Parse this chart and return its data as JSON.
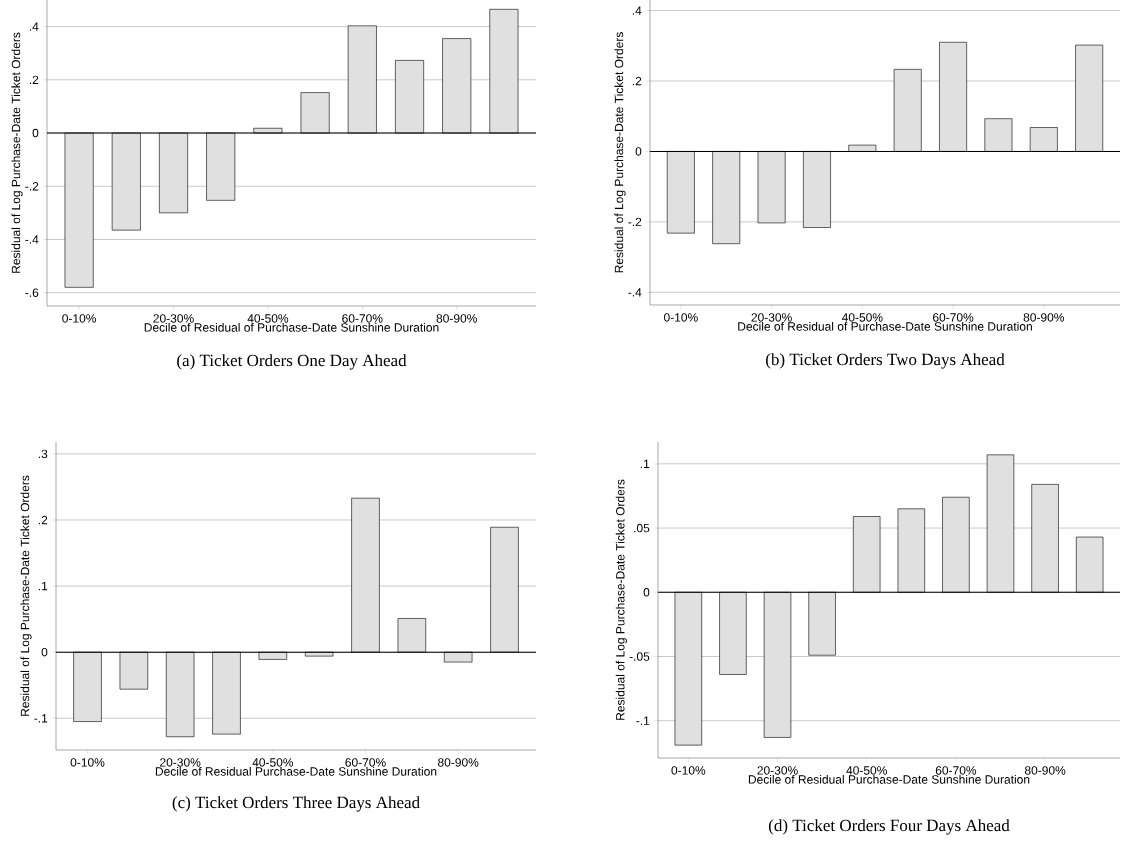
{
  "chart_data": [
    {
      "type": "bar",
      "title": "(a) Ticket Orders One Day Ahead",
      "xlabel": "Decile of Residual of Purchase-Date Sunshine Duration",
      "ylabel": "Residual of Log Purchase-Date Ticket Orders",
      "categories": [
        "0-10%",
        null,
        "20-30%",
        null,
        "40-50%",
        null,
        "60-70%",
        null,
        "80-90%",
        null
      ],
      "values": [
        -0.58,
        -0.365,
        -0.3,
        -0.253,
        0.018,
        0.152,
        0.403,
        0.273,
        0.355,
        0.465
      ],
      "color": "#e0e0e0",
      "ylim": [
        -0.65,
        0.5
      ],
      "yticks": [
        {
          "value": -0.6,
          "label": "-.6"
        },
        {
          "value": -0.4,
          "label": "-.4"
        },
        {
          "value": -0.2,
          "label": "-.2"
        },
        0,
        {
          "value": 0.2,
          "label": ".2"
        },
        {
          "value": 0.4,
          "label": ".4"
        }
      ],
      "grid": "y",
      "ref_lines": [
        {
          "axis": "y",
          "value": 0,
          "color": "#000000"
        }
      ]
    },
    {
      "type": "bar",
      "title": "(b) Ticket Orders Two Days Ahead",
      "xlabel": "Decile of Residual of Purchase-Date Sunshine Duration",
      "ylabel": "Residual of Log Purchase-Date Ticket Orders",
      "categories": [
        "0-10%",
        null,
        "20-30%",
        null,
        "40-50%",
        null,
        "60-70%",
        null,
        "80-90%",
        null
      ],
      "values": [
        -0.232,
        -0.262,
        -0.203,
        -0.216,
        0.018,
        0.233,
        0.31,
        0.093,
        0.068,
        0.302
      ],
      "color": "#e0e0e0",
      "ylim": [
        -0.436,
        0.43
      ],
      "yticks": [
        {
          "value": -0.4,
          "label": "-.4"
        },
        {
          "value": -0.2,
          "label": "-.2"
        },
        0,
        {
          "value": 0.2,
          "label": ".2"
        },
        {
          "value": 0.4,
          "label": ".4"
        }
      ],
      "grid": "y",
      "ref_lines": [
        {
          "axis": "y",
          "value": 0,
          "color": "#000000"
        }
      ]
    },
    {
      "type": "bar",
      "title": "(c) Ticket Orders Three Days Ahead",
      "xlabel": "Decile of Residual Purchase-Date Sunshine Duration",
      "ylabel": "Residual of Log Purchase-Date Ticket Orders",
      "categories": [
        "0-10%",
        null,
        "20-30%",
        null,
        "40-50%",
        null,
        "60-70%",
        null,
        "80-90%",
        null
      ],
      "values": [
        -0.105,
        -0.056,
        -0.128,
        -0.124,
        -0.011,
        -0.006,
        0.233,
        0.051,
        -0.015,
        0.189
      ],
      "color": "#e0e0e0",
      "ylim": [
        -0.148,
        0.318
      ],
      "yticks": [
        {
          "value": -0.1,
          "label": "-.1"
        },
        0,
        {
          "value": 0.1,
          "label": ".1"
        },
        {
          "value": 0.2,
          "label": ".2"
        },
        {
          "value": 0.3,
          "label": ".3"
        }
      ],
      "grid": "y",
      "ref_lines": [
        {
          "axis": "y",
          "value": 0,
          "color": "#000000"
        }
      ]
    },
    {
      "type": "bar",
      "title": "(d) Ticket Orders Four Days Ahead",
      "xlabel": "Decile of Residual Purchase-Date Sunshine Duration",
      "ylabel": "Residual of Log Purchase-Date Ticket Orders",
      "categories": [
        "0-10%",
        null,
        "20-30%",
        null,
        "40-50%",
        null,
        "60-70%",
        null,
        "80-90%",
        null
      ],
      "values": [
        -0.119,
        -0.064,
        -0.113,
        -0.049,
        0.059,
        0.065,
        0.074,
        0.107,
        0.084,
        0.043
      ],
      "color": "#e0e0e0",
      "ylim": [
        -0.129,
        0.117
      ],
      "yticks": [
        {
          "value": -0.1,
          "label": "-.1"
        },
        {
          "value": -0.05,
          "label": "-.05"
        },
        0,
        {
          "value": 0.05,
          "label": ".05"
        },
        {
          "value": 0.1,
          "label": ".1"
        }
      ],
      "grid": "y",
      "ref_lines": [
        {
          "axis": "y",
          "value": 0,
          "color": "#000000"
        }
      ]
    }
  ]
}
